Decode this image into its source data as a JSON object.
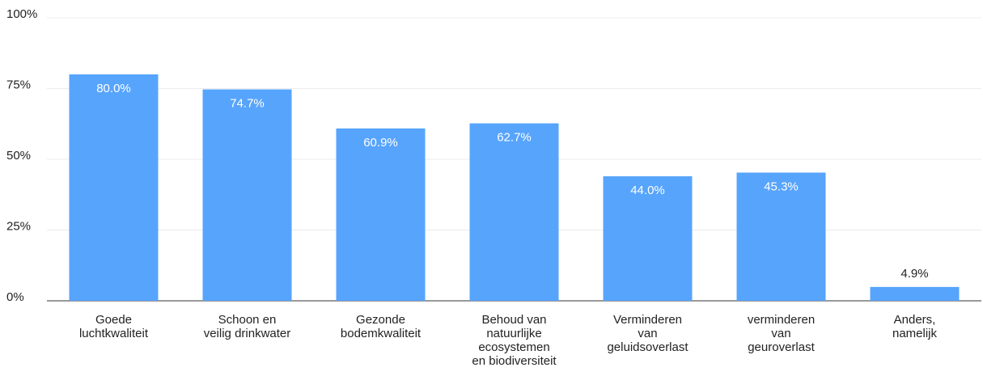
{
  "chart_data": {
    "type": "bar",
    "categories": [
      "Goede\nluchtkwaliteit",
      "Schoon en\nveilig drinkwater",
      "Gezonde\nbodemkwaliteit",
      "Behoud van\nnatuurlijke\necosystemen\nen biodiversiteit",
      "Verminderen\nvan\ngeluidsoverlast",
      "verminderen\nvan\ngeuroverlast",
      "Anders,\nnamelijk"
    ],
    "values": [
      80.0,
      74.7,
      60.9,
      62.7,
      44.0,
      45.3,
      4.9
    ],
    "value_labels": [
      "80.0%",
      "74.7%",
      "60.9%",
      "62.7%",
      "44.0%",
      "45.3%",
      "4.9%"
    ],
    "color": "#57a4fd",
    "ylim": [
      0,
      100
    ],
    "yticks": [
      {
        "value": 0,
        "label": "0%"
      },
      {
        "value": 25,
        "label": "25%"
      },
      {
        "value": 50,
        "label": "50%"
      },
      {
        "value": 75,
        "label": "75%"
      },
      {
        "value": 100,
        "label": "100%"
      }
    ],
    "grid": true
  }
}
